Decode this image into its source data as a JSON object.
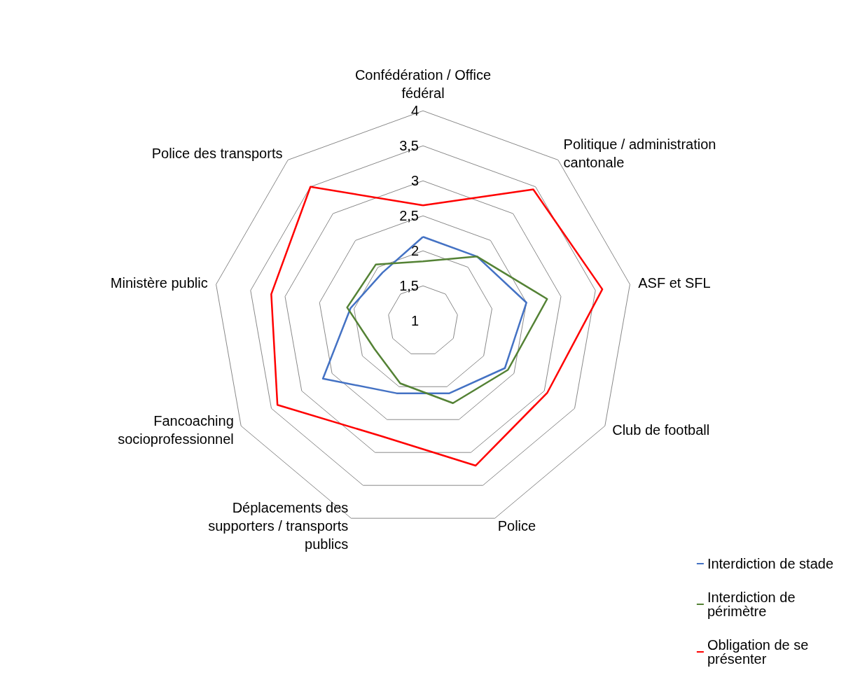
{
  "chart_data": {
    "type": "radar",
    "categories": [
      "Confédération / Office fédéral",
      "Politique / administration cantonale",
      "ASF et SFL",
      "Club de football",
      "Police",
      "Déplacements des supporters / transports publics",
      "Fancoaching socioprofessionnel",
      "Ministère public",
      "Police des transports"
    ],
    "series": [
      {
        "name": "Interdiction de stade",
        "color": "#4472c4",
        "values": [
          2.2,
          2.2,
          2.5,
          2.35,
          2.1,
          2.1,
          2.65,
          2.05,
          1.9
        ]
      },
      {
        "name": "Interdiction de périmètre",
        "color": "#548235",
        "values": [
          1.85,
          2.2,
          2.8,
          2.4,
          2.25,
          1.95,
          1.8,
          2.1,
          2.05
        ]
      },
      {
        "name": "Obligation de se présenter",
        "color": "#ff0000",
        "values": [
          2.65,
          3.45,
          3.6,
          3.05,
          3.2,
          2.75,
          3.4,
          3.2,
          3.5
        ]
      }
    ],
    "ylim": [
      1,
      4
    ],
    "yticks": [
      1,
      {
        "value": 1.5,
        "label": "1,5"
      },
      2,
      {
        "value": 2.5,
        "label": "2,5"
      },
      3,
      {
        "value": 3.5,
        "label": "3,5"
      },
      4
    ],
    "grid": true,
    "legend": "bottom right",
    "marker": "none",
    "line_style": "solid"
  }
}
